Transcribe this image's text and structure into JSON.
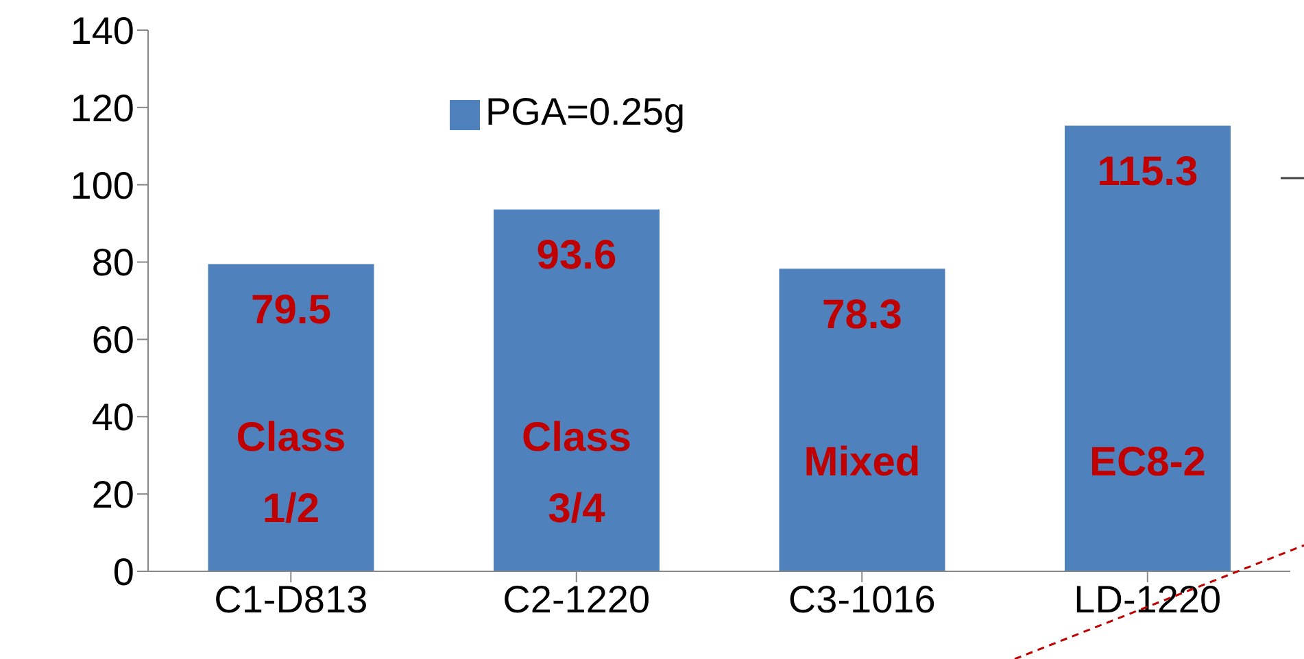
{
  "chart_data": {
    "type": "bar",
    "categories": [
      "C1-D813",
      "C2-1220",
      "C3-1016",
      "LD-1220"
    ],
    "series": [
      {
        "name": "PGA=0.25g",
        "color": "#4f81bd",
        "values": [
          79.5,
          93.6,
          78.3,
          115.3
        ]
      }
    ],
    "ylim": [
      0,
      140
    ],
    "yticks": [
      0,
      20,
      40,
      60,
      80,
      100,
      120,
      140
    ],
    "grid": false,
    "legend": "top",
    "data_labels": true,
    "annotations": [
      "Class 1/2",
      "Class 3/4",
      "Mixed",
      "EC8-2"
    ]
  }
}
